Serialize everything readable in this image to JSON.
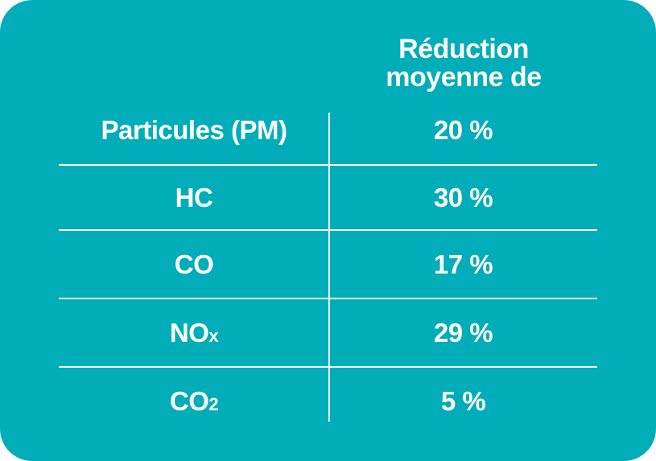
{
  "table": {
    "header": {
      "line1": "Réduction",
      "line2": "moyenne de"
    },
    "rows": [
      {
        "pollutant": "Particules (PM)",
        "sub": "",
        "value": "20 %"
      },
      {
        "pollutant": "HC",
        "sub": "",
        "value": "30 %"
      },
      {
        "pollutant": "CO",
        "sub": "",
        "value": "17 %"
      },
      {
        "pollutant": "NO",
        "sub": "x",
        "value": "29 %"
      },
      {
        "pollutant": "CO",
        "sub": "2",
        "value": "5 %"
      }
    ]
  },
  "colors": {
    "background": "#00adb8",
    "text": "#ffffff"
  }
}
